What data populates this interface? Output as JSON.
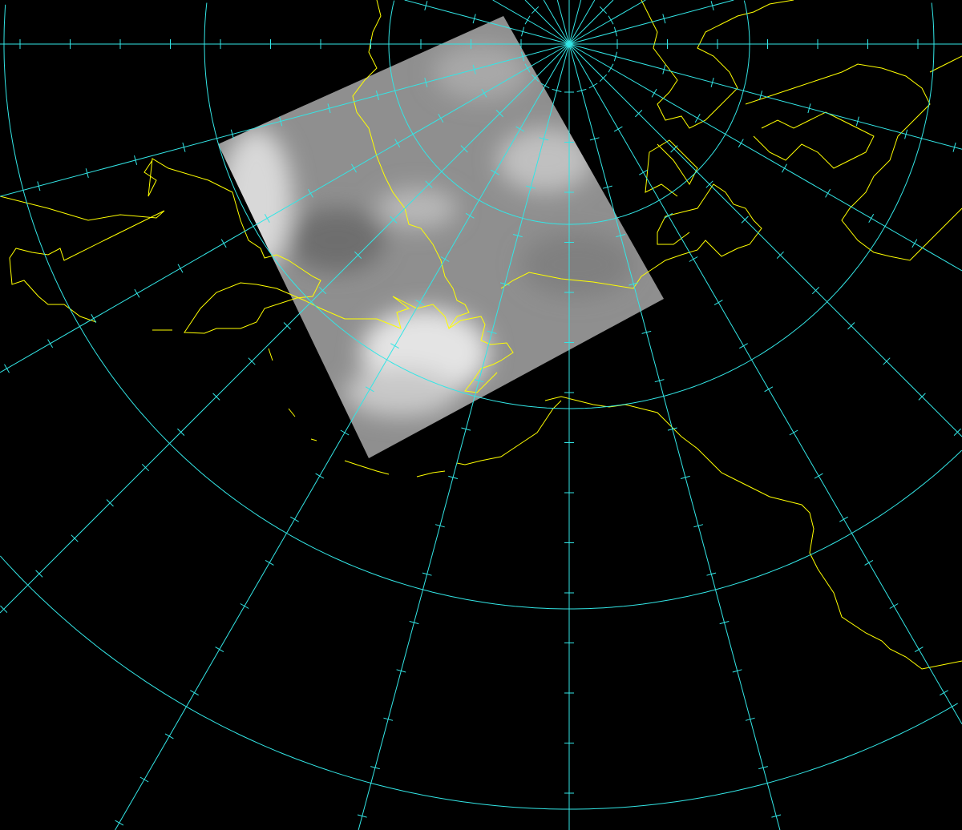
{
  "map": {
    "background_color": "#000000",
    "graticule_color": "#33e6e6",
    "coastline_color": "#ffff00",
    "imagery_color": "#9a9a9a",
    "graticule_spacing_deg": 15,
    "layers": [
      "satellite-imagery",
      "coastlines",
      "graticule"
    ]
  }
}
